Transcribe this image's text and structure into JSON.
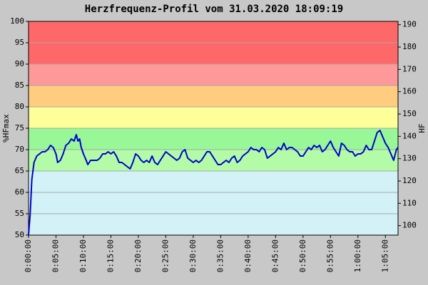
{
  "chart_data": {
    "type": "line",
    "title": "Herzfrequenz-Profil vom 31.03.2020 18:09:19",
    "y_label": "%HFmax",
    "y2_label": "HF",
    "xlim": [
      0,
      67.3
    ],
    "xticks": [
      {
        "value": 0,
        "label": "0:00:00"
      },
      {
        "value": 5,
        "label": "0:05:00"
      },
      {
        "value": 10,
        "label": "0:10:00"
      },
      {
        "value": 15,
        "label": "0:15:00"
      },
      {
        "value": 20,
        "label": "0:20:00"
      },
      {
        "value": 25,
        "label": "0:25:00"
      },
      {
        "value": 30,
        "label": "0:30:00"
      },
      {
        "value": 35,
        "label": "0:35:00"
      },
      {
        "value": 40,
        "label": "0:40:00"
      },
      {
        "value": 45,
        "label": "0:45:00"
      },
      {
        "value": 50,
        "label": "0:50:00"
      },
      {
        "value": 55,
        "label": "0:55:00"
      },
      {
        "value": 60,
        "label": "1:00:00"
      },
      {
        "value": 65,
        "label": "1:05:00"
      }
    ],
    "ylim": [
      50,
      100
    ],
    "yticks": [
      50,
      55,
      60,
      65,
      70,
      75,
      80,
      85,
      90,
      95,
      100
    ],
    "y2lim": [
      95.75,
      191.5
    ],
    "y2ticks": [
      100,
      110,
      120,
      130,
      140,
      150,
      160,
      170,
      180,
      190
    ],
    "grid": true,
    "bands": [
      {
        "from": 50,
        "to": 65,
        "color": "#d2f2f8"
      },
      {
        "from": 65,
        "to": 70,
        "color": "#b4fba8"
      },
      {
        "from": 70,
        "to": 75,
        "color": "#98f898"
      },
      {
        "from": 75,
        "to": 80,
        "color": "#ffff99"
      },
      {
        "from": 80,
        "to": 85,
        "color": "#ffcc80"
      },
      {
        "from": 85,
        "to": 90,
        "color": "#ff9898"
      },
      {
        "from": 90,
        "to": 100,
        "color": "#ff6868"
      }
    ],
    "x": [
      0,
      0.3,
      0.6,
      1,
      1.5,
      2,
      2.5,
      3,
      3.5,
      4,
      4.5,
      5,
      5.3,
      5.8,
      6.3,
      6.8,
      7.3,
      7.8,
      8.3,
      8.7,
      9,
      9.3,
      9.6,
      10,
      10.5,
      10.8,
      11.3,
      12,
      12.5,
      13,
      13.5,
      14,
      14.5,
      15,
      15.5,
      16,
      16.5,
      17,
      17.5,
      18,
      18.5,
      19,
      19.5,
      20,
      20.5,
      21,
      21.5,
      22,
      22.5,
      23,
      23.5,
      24,
      24.5,
      25,
      25.5,
      26,
      26.5,
      27,
      27.5,
      28,
      28.5,
      29,
      29.5,
      30,
      30.5,
      31,
      31.5,
      32,
      32.5,
      33,
      33.5,
      34,
      34.5,
      35,
      35.5,
      36,
      36.5,
      37,
      37.5,
      38,
      38.5,
      39,
      39.5,
      40,
      40.5,
      41,
      41.5,
      42,
      42.5,
      43,
      43.5,
      44,
      44.5,
      45,
      45.5,
      46,
      46.5,
      47,
      47.5,
      48,
      48.5,
      49,
      49.5,
      50,
      50.5,
      51,
      51.5,
      52,
      52.5,
      53,
      53.5,
      54,
      54.5,
      55,
      55.5,
      56,
      56.5,
      57,
      57.5,
      58,
      58.5,
      59,
      59.5,
      60,
      60.5,
      61,
      61.5,
      62,
      62.5,
      63,
      63.5,
      64,
      64.5,
      65,
      65.5,
      66,
      66.5,
      67,
      67.3
    ],
    "series": [
      {
        "color": "#0000cc",
        "values": [
          50,
          55,
          63,
          67,
          68.5,
          69,
          69.5,
          69.5,
          70,
          71,
          70.5,
          69,
          67,
          67.5,
          69,
          71,
          71.5,
          72.5,
          72,
          73.5,
          72,
          72.5,
          70.5,
          69,
          67.5,
          66.5,
          67.5,
          67.5,
          67.5,
          68,
          69,
          69,
          69.5,
          69,
          69.5,
          68.5,
          67,
          67,
          66.5,
          66,
          65.5,
          67,
          69,
          68.5,
          67.5,
          67,
          67.5,
          67,
          68.5,
          67,
          66.5,
          67.5,
          68.5,
          69.5,
          69,
          68.5,
          68,
          67.5,
          68,
          69.5,
          70,
          68,
          67.5,
          67,
          67.5,
          67,
          67.5,
          68.5,
          69.5,
          69.5,
          68.5,
          67.5,
          66.5,
          66.5,
          67,
          67.5,
          67,
          68,
          68.5,
          67,
          67.5,
          68.5,
          69,
          69.5,
          70.5,
          70,
          70,
          69.5,
          70.5,
          70,
          68,
          68.5,
          69,
          69.5,
          70.5,
          70,
          71.5,
          70,
          70.5,
          70.5,
          70,
          69.5,
          68.5,
          68.5,
          69.5,
          70.5,
          70,
          71,
          70.5,
          71,
          69.5,
          70,
          71,
          72,
          70.5,
          69.5,
          68.5,
          71.5,
          71,
          70,
          69.5,
          69.5,
          68.5,
          69,
          69,
          69.5,
          71,
          70,
          70,
          72,
          74,
          74.5,
          73,
          71.5,
          70.5,
          69,
          67.5,
          70,
          70.5
        ]
      }
    ]
  }
}
